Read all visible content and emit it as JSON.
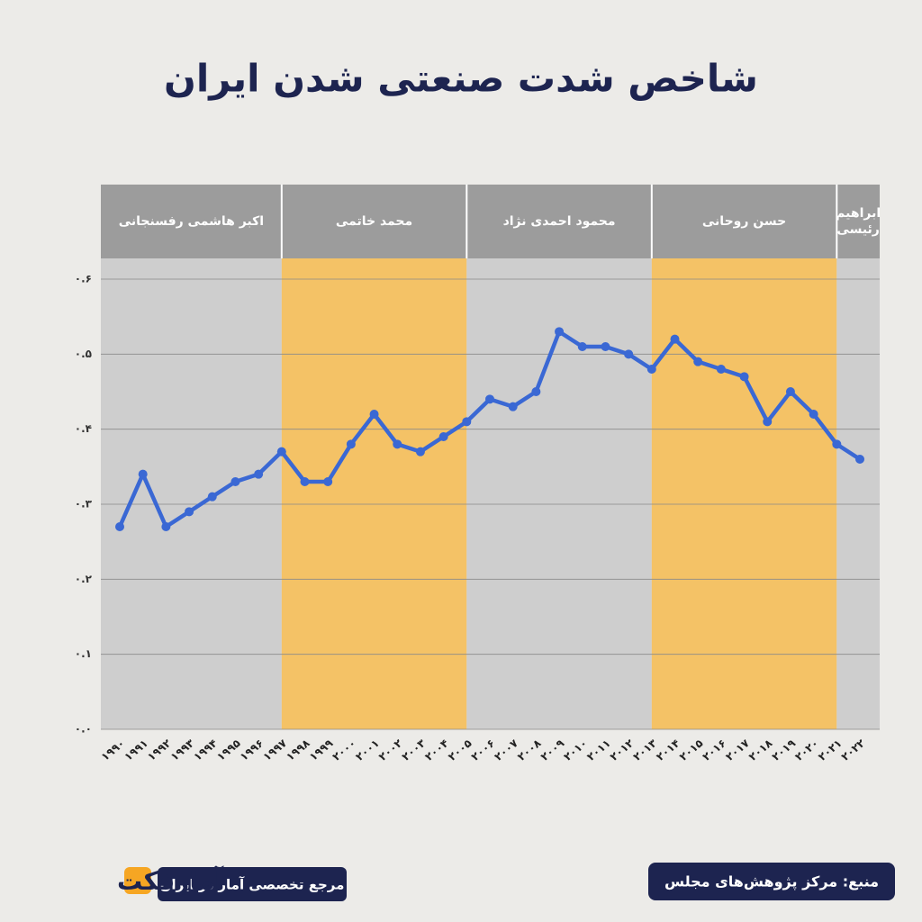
{
  "chart_data": {
    "type": "line",
    "title": "شاخص شدت صنعتی شدن ایران",
    "categories": [
      "۱۹۹۰",
      "۱۹۹۱",
      "۱۹۹۲",
      "۱۹۹۳",
      "۱۹۹۴",
      "۱۹۹۵",
      "۱۹۹۶",
      "۱۹۹۷",
      "۱۹۹۸",
      "۱۹۹۹",
      "۲۰۰۰",
      "۲۰۰۱",
      "۲۰۰۲",
      "۲۰۰۳",
      "۲۰۰۴",
      "۲۰۰۵",
      "۲۰۰۶",
      "۲۰۰۷",
      "۲۰۰۸",
      "۲۰۰۹",
      "۲۰۱۰",
      "۲۰۱۱",
      "۲۰۱۲",
      "۲۰۱۳",
      "۲۰۱۴",
      "۲۰۱۵",
      "۲۰۱۶",
      "۲۰۱۷",
      "۲۰۱۸",
      "۲۰۱۹",
      "۲۰۲۰",
      "۲۰۲۱",
      "۲۰۲۲"
    ],
    "values": [
      0.27,
      0.34,
      0.27,
      0.29,
      0.31,
      0.33,
      0.34,
      0.37,
      0.33,
      0.33,
      0.38,
      0.42,
      0.38,
      0.37,
      0.39,
      0.41,
      0.44,
      0.43,
      0.45,
      0.53,
      0.51,
      0.51,
      0.5,
      0.48,
      0.52,
      0.49,
      0.48,
      0.47,
      0.41,
      0.45,
      0.42,
      0.38,
      0.36
    ],
    "color": "#3a68d4",
    "ylim": [
      0,
      0.6
    ],
    "yticks": [
      {
        "value": 0,
        "label": "۰.۰"
      },
      {
        "value": 0.1,
        "label": "۰.۱"
      },
      {
        "value": 0.2,
        "label": "۰.۲"
      },
      {
        "value": 0.3,
        "label": "۰.۳"
      },
      {
        "value": 0.4,
        "label": "۰.۴"
      },
      {
        "value": 0.5,
        "label": "۰.۵"
      },
      {
        "value": 0.6,
        "label": "۰.۶"
      }
    ],
    "grid": true,
    "periods": [
      {
        "name": "اکبر هاشمی رفسنجانی",
        "start": "۱۹۹۰",
        "end": "۱۹۹۷",
        "color": "#c9c9c9"
      },
      {
        "name": "محمد خاتمی",
        "start": "۱۹۹۷",
        "end": "۲۰۰۵",
        "color": "#f6bb4f"
      },
      {
        "name": "محمود احمدی نژاد",
        "start": "۲۰۰۵",
        "end": "۲۰۱۳",
        "color": "#c9c9c9"
      },
      {
        "name": "حسن روحانی",
        "start": "۲۰۱۳",
        "end": "۲۰۲۱",
        "color": "#f6bb4f"
      },
      {
        "name": "ابراهیم رئیسی",
        "start": "۲۰۲۱",
        "end": "۲۰۲۲",
        "color": "#c9c9c9"
      }
    ],
    "brand": "آمارفکت",
    "tagline": "مرجع تخصصی آمار در ایران",
    "source": "منبع: مرکز پژوهش‌های مجلس"
  }
}
